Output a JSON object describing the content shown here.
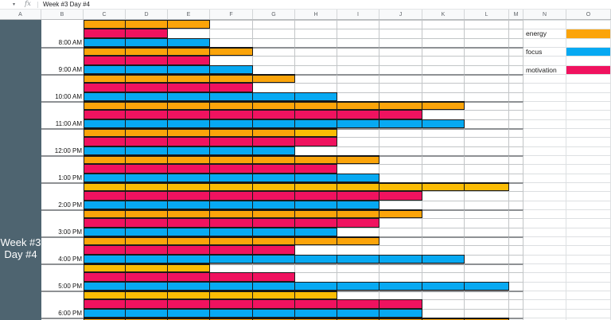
{
  "formula_bar": {
    "name_box_caret": "▾",
    "fx_label": "fx",
    "value": "Week #3 Day #4"
  },
  "column_headers": [
    "A",
    "B",
    "C",
    "D",
    "E",
    "F",
    "G",
    "H",
    "I",
    "J",
    "K",
    "L",
    "M",
    "N",
    "O"
  ],
  "frozen_panel": {
    "line1": "Week #3",
    "line2": "Day #4"
  },
  "colors": {
    "energy": "#FBA40A",
    "energy_alt": "#FBBC04",
    "focus": "#07A9F2",
    "motivation": "#F0125F",
    "panel": "#4E6470"
  },
  "legend": [
    {
      "label": "energy",
      "color": "#FBA40A"
    },
    {
      "label": "focus",
      "color": "#07A9F2"
    },
    {
      "label": "motivation",
      "color": "#F0125F"
    }
  ],
  "chart_data": {
    "type": "bar",
    "note": "horizontal cell-bars per hour; values = number of spreadsheet cells filled (columns C onward)",
    "categories": [
      "8:00 AM",
      "9:00 AM",
      "10:00 AM",
      "11:00 AM",
      "12:00 PM",
      "1:00 PM",
      "2:00 PM",
      "3:00 PM",
      "4:00 PM",
      "5:00 PM",
      "6:00 PM"
    ],
    "series": [
      {
        "name": "energy",
        "values": [
          3,
          4,
          5,
          9,
          6,
          7,
          10,
          8,
          7,
          3,
          6
        ]
      },
      {
        "name": "motivation",
        "values": [
          2,
          3,
          4,
          8,
          6,
          6,
          8,
          7,
          5,
          5,
          8
        ]
      },
      {
        "name": "focus",
        "values": [
          3,
          4,
          6,
          9,
          5,
          7,
          7,
          6,
          9,
          10,
          8
        ]
      }
    ]
  },
  "schedule": [
    {
      "time": "8:00 AM",
      "energy": 3,
      "motivation": 2,
      "focus": 3
    },
    {
      "time": "9:00 AM",
      "energy": 4,
      "motivation": 3,
      "focus": 4
    },
    {
      "time": "10:00 AM",
      "energy": 5,
      "motivation": 4,
      "focus": 6
    },
    {
      "time": "11:00 AM",
      "energy": 9,
      "motivation": 8,
      "focus": 9
    },
    {
      "time": "12:00 PM",
      "energy": 6,
      "motivation": 6,
      "focus": 5,
      "energy_alt_cells": [
        6
      ]
    },
    {
      "time": "1:00 PM",
      "energy": 7,
      "motivation": 6,
      "focus": 7
    },
    {
      "time": "2:00 PM",
      "energy": 10,
      "motivation": 8,
      "focus": 7,
      "energy_alt": true
    },
    {
      "time": "3:00 PM",
      "energy": 8,
      "motivation": 7,
      "focus": 6
    },
    {
      "time": "4:00 PM",
      "energy": 7,
      "motivation": 5,
      "focus": 9
    },
    {
      "time": "5:00 PM",
      "energy": 3,
      "motivation": 5,
      "focus": 10,
      "energy_alt": true
    },
    {
      "time": "6:00 PM",
      "energy": 6,
      "motivation": 8,
      "focus": 8,
      "energy_alt": true
    },
    {
      "time": "",
      "energy": 10,
      "motivation": 0,
      "focus": 0,
      "partial": true
    }
  ]
}
